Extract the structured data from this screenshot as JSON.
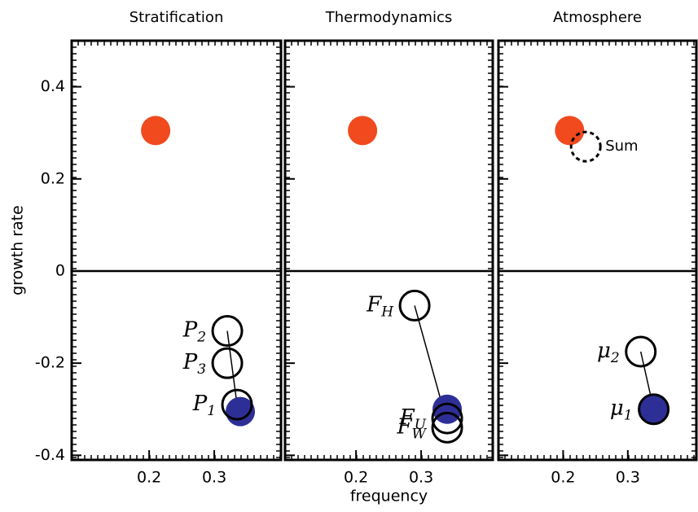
{
  "chart_data": [
    {
      "type": "scatter",
      "title": "Stratification",
      "ylabel": "growth rate",
      "xlim": [
        0.081,
        0.4025
      ],
      "ylim": [
        -0.41,
        0.5
      ],
      "xticks": [
        0.2,
        0.3
      ],
      "yticks": [
        -0.4,
        -0.2,
        0,
        0.2,
        0.4
      ],
      "show_yticklabels": true,
      "hline": 0,
      "points": [
        {
          "x": 0.21,
          "y": 0.305,
          "fill": "#f04a1e",
          "stroke": "none",
          "dashed": false
        },
        {
          "x": 0.34,
          "y": -0.305,
          "fill": "#2e2f96",
          "stroke": "none",
          "dashed": false
        },
        {
          "x": 0.32,
          "y": -0.13,
          "fill": "none",
          "stroke": "#000000",
          "dashed": false,
          "label": "P",
          "sub": "2"
        },
        {
          "x": 0.32,
          "y": -0.2,
          "fill": "none",
          "stroke": "#000000",
          "dashed": false,
          "label": "P",
          "sub": "3"
        },
        {
          "x": 0.335,
          "y": -0.29,
          "fill": "none",
          "stroke": "#000000",
          "dashed": false,
          "label": "P",
          "sub": "1"
        }
      ],
      "lines": [
        {
          "x": [
            0.32,
            0.335
          ],
          "y": [
            -0.13,
            -0.29
          ]
        }
      ]
    },
    {
      "type": "scatter",
      "title": "Thermodynamics",
      "xlabel": "frequency",
      "xlim": [
        0.091,
        0.41
      ],
      "ylim": [
        -0.41,
        0.5
      ],
      "xticks": [
        0.2,
        0.3
      ],
      "yticks": [
        -0.4,
        -0.2,
        0,
        0.2,
        0.4
      ],
      "show_yticklabels": false,
      "hline": 0,
      "points": [
        {
          "x": 0.21,
          "y": 0.305,
          "fill": "#f04a1e",
          "stroke": "none",
          "dashed": false
        },
        {
          "x": 0.34,
          "y": -0.3,
          "fill": "#2e2f96",
          "stroke": "none",
          "dashed": false
        },
        {
          "x": 0.29,
          "y": -0.075,
          "fill": "none",
          "stroke": "#000000",
          "dashed": false,
          "label": "F",
          "sub": "H"
        },
        {
          "x": 0.34,
          "y": -0.32,
          "fill": "none",
          "stroke": "#000000",
          "dashed": false,
          "label": "F",
          "sub": "U"
        },
        {
          "x": 0.34,
          "y": -0.34,
          "fill": "none",
          "stroke": "#000000",
          "dashed": false,
          "label": "F",
          "sub": "W"
        }
      ],
      "lines": [
        {
          "x": [
            0.29,
            0.34
          ],
          "y": [
            -0.075,
            -0.33
          ]
        }
      ]
    },
    {
      "type": "scatter",
      "title": "Atmosphere",
      "xlim": [
        0.1,
        0.406
      ],
      "ylim": [
        -0.41,
        0.5
      ],
      "xticks": [
        0.2,
        0.3
      ],
      "yticks": [
        -0.4,
        -0.2,
        0,
        0.2,
        0.4
      ],
      "show_yticklabels": false,
      "hline": 0,
      "points": [
        {
          "x": 0.21,
          "y": 0.305,
          "fill": "#f04a1e",
          "stroke": "none",
          "dashed": false
        },
        {
          "x": 0.235,
          "y": 0.27,
          "fill": "none",
          "stroke": "#000000",
          "dashed": true,
          "note": "Sum"
        },
        {
          "x": 0.32,
          "y": -0.175,
          "fill": "none",
          "stroke": "#000000",
          "dashed": false,
          "label": "μ",
          "sub": "2"
        },
        {
          "x": 0.34,
          "y": -0.3,
          "fill": "#2e2f96",
          "stroke": "#000000",
          "dashed": false,
          "label": "μ",
          "sub": "1"
        }
      ],
      "lines": [
        {
          "x": [
            0.32,
            0.34
          ],
          "y": [
            -0.175,
            -0.3
          ]
        }
      ]
    }
  ]
}
